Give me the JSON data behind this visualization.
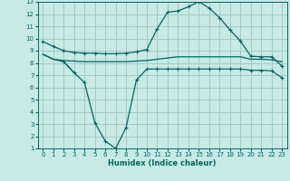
{
  "bg_color": "#c8eae4",
  "grid_color": "#a8c8c4",
  "line_color": "#006666",
  "xlabel": "Humidex (Indice chaleur)",
  "xlim": [
    -0.5,
    23.5
  ],
  "ylim": [
    1,
    13
  ],
  "xticks": [
    0,
    1,
    2,
    3,
    4,
    5,
    6,
    7,
    8,
    9,
    10,
    11,
    12,
    13,
    14,
    15,
    16,
    17,
    18,
    19,
    20,
    21,
    22,
    23
  ],
  "yticks": [
    1,
    2,
    3,
    4,
    5,
    6,
    7,
    8,
    9,
    10,
    11,
    12,
    13
  ],
  "line1_x": [
    0,
    1,
    2,
    3,
    4,
    5,
    6,
    7,
    8,
    9,
    10,
    11,
    12,
    13,
    14,
    15,
    16,
    17,
    18,
    19,
    20,
    21,
    22,
    23
  ],
  "line1_y": [
    9.75,
    9.35,
    9.0,
    8.85,
    8.8,
    8.8,
    8.75,
    8.75,
    8.8,
    8.9,
    9.1,
    10.8,
    12.15,
    12.25,
    12.6,
    13.0,
    12.5,
    11.7,
    10.7,
    9.8,
    8.55,
    8.5,
    8.5,
    7.75
  ],
  "line2_x": [
    0,
    1,
    2,
    3,
    4,
    5,
    6,
    7,
    8,
    9,
    10,
    11,
    12,
    13,
    14,
    15,
    16,
    17,
    18,
    19,
    20,
    21,
    22,
    23
  ],
  "line2_y": [
    8.7,
    8.3,
    8.2,
    8.15,
    8.1,
    8.1,
    8.1,
    8.1,
    8.1,
    8.15,
    8.2,
    8.3,
    8.4,
    8.5,
    8.5,
    8.5,
    8.5,
    8.5,
    8.5,
    8.5,
    8.3,
    8.3,
    8.25,
    8.1
  ],
  "line3_x": [
    2,
    3,
    4,
    5,
    6,
    7,
    8,
    9,
    10,
    11,
    12,
    13,
    14,
    15,
    16,
    17,
    18,
    19,
    20,
    21,
    22,
    23
  ],
  "line3_y": [
    8.1,
    7.2,
    6.4,
    3.1,
    1.6,
    1.0,
    2.7,
    6.6,
    7.5,
    7.5,
    7.5,
    7.5,
    7.5,
    7.5,
    7.5,
    7.5,
    7.5,
    7.5,
    7.4,
    7.4,
    7.35,
    6.8
  ],
  "line4_x": [
    0,
    1,
    2,
    3
  ],
  "line4_y": [
    8.7,
    8.3,
    8.1,
    7.2
  ]
}
